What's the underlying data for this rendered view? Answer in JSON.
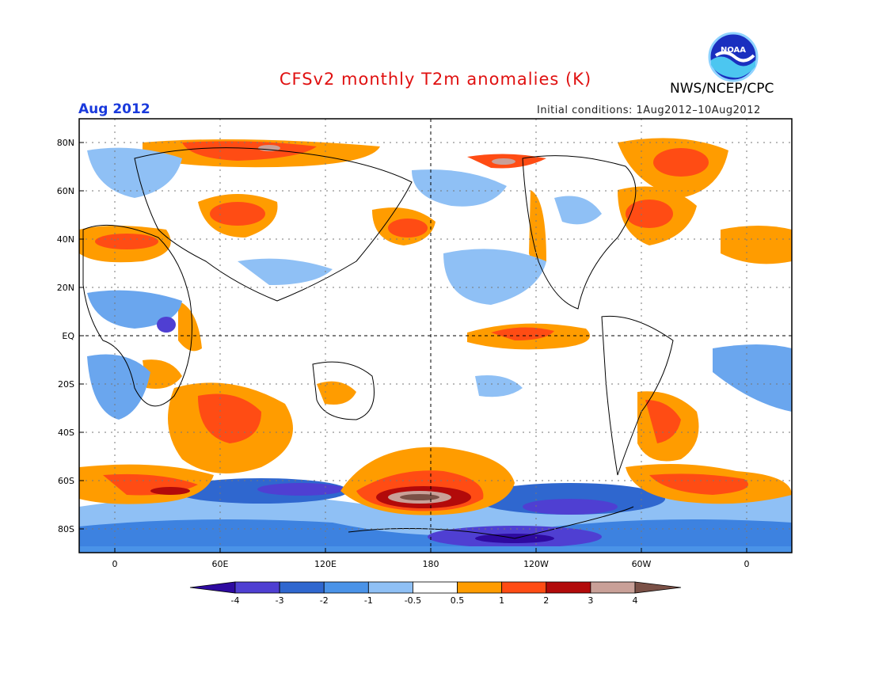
{
  "title": "CFSv2 monthly T2m anomalies (K)",
  "org": "NWS/NCEP/CPC",
  "period": "Aug 2012",
  "initial_conditions": "Initial conditions: 1Aug2012–10Aug2012",
  "logo_text": "NOAA",
  "lat_ticks": [
    "80N",
    "60N",
    "40N",
    "20N",
    "EQ",
    "20S",
    "40S",
    "60S",
    "80S"
  ],
  "lon_ticks": [
    "0",
    "60E",
    "120E",
    "180",
    "120W",
    "60W",
    "0"
  ],
  "colorbar": {
    "labels": [
      "-4",
      "-3",
      "-2",
      "-1",
      "-0.5",
      "0.5",
      "1",
      "2",
      "3",
      "4"
    ],
    "colors": [
      "#2e0aa0",
      "#4f3fd2",
      "#2f67cf",
      "#4a93e8",
      "#8fc0f5",
      "#ffffff",
      "#ff9c00",
      "#ff4c14",
      "#b20a0a",
      "#c9a098",
      "#7a5046"
    ]
  }
}
